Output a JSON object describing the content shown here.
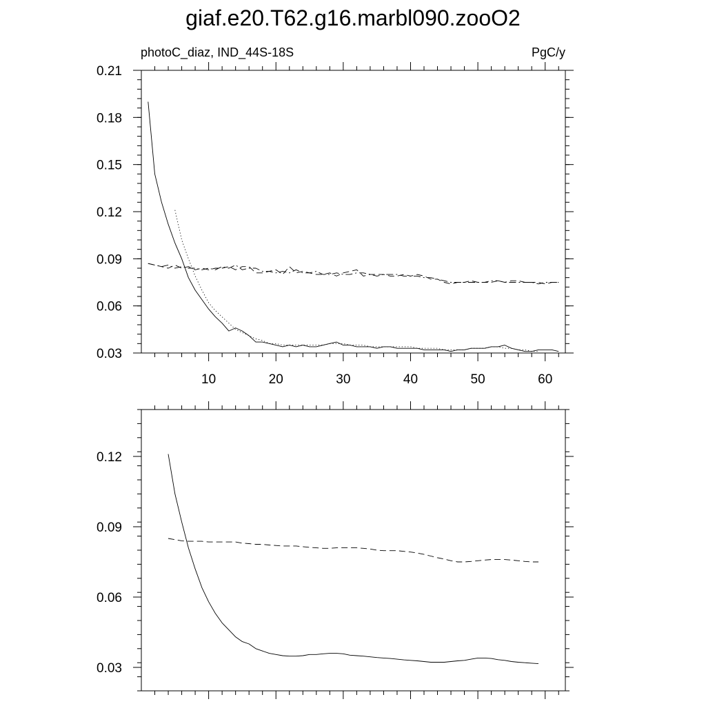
{
  "title": "giaf.e20.T62.g16.marbl090.zooO2",
  "chart_data": [
    {
      "type": "line",
      "left_label": "photoC_diaz, IND_44S-18S",
      "right_label": "PgC/y",
      "xlim": [
        0,
        63
      ],
      "ylim": [
        0.03,
        0.21
      ],
      "x_ticks": [
        10,
        20,
        30,
        40,
        50,
        60
      ],
      "x_tick_labels": [
        "10",
        "20",
        "30",
        "40",
        "50",
        "60"
      ],
      "y_ticks": [
        0.03,
        0.06,
        0.09,
        0.12,
        0.15,
        0.18,
        0.21
      ],
      "y_tick_labels": [
        "0.03",
        "0.06",
        "0.09",
        "0.12",
        "0.15",
        "0.18",
        "0.21"
      ],
      "grid": false,
      "series": [
        {
          "style": "solid",
          "x": [
            1,
            2,
            3,
            4,
            5,
            6,
            7,
            8,
            9,
            10,
            11,
            12,
            13,
            14,
            15,
            16,
            17,
            18,
            19,
            20,
            21,
            22,
            23,
            24,
            25,
            26,
            27,
            28,
            29,
            30,
            31,
            32,
            33,
            34,
            35,
            36,
            37,
            38,
            39,
            40,
            41,
            42,
            43,
            44,
            45,
            46,
            47,
            48,
            49,
            50,
            51,
            52,
            53,
            54,
            55,
            56,
            57,
            58,
            59,
            60,
            61,
            62
          ],
          "values": [
            0.19,
            0.144,
            0.126,
            0.112,
            0.1,
            0.09,
            0.078,
            0.07,
            0.064,
            0.058,
            0.053,
            0.049,
            0.044,
            0.046,
            0.044,
            0.041,
            0.037,
            0.037,
            0.036,
            0.035,
            0.034,
            0.035,
            0.034,
            0.035,
            0.034,
            0.034,
            0.035,
            0.036,
            0.037,
            0.035,
            0.035,
            0.034,
            0.034,
            0.034,
            0.033,
            0.034,
            0.034,
            0.033,
            0.033,
            0.033,
            0.033,
            0.032,
            0.032,
            0.032,
            0.032,
            0.031,
            0.032,
            0.032,
            0.033,
            0.033,
            0.033,
            0.034,
            0.034,
            0.035,
            0.033,
            0.032,
            0.031,
            0.031,
            0.032,
            0.032,
            0.032,
            0.031
          ]
        },
        {
          "style": "dotted",
          "x": [
            5,
            6,
            7,
            8,
            9,
            10,
            11,
            12,
            13,
            14,
            15,
            16,
            17,
            18,
            19,
            20,
            21,
            22,
            23,
            24,
            25,
            26,
            27,
            28,
            29,
            30,
            31,
            32,
            33,
            34,
            35,
            36,
            37,
            38,
            39,
            40,
            41,
            42,
            43,
            44,
            45,
            46,
            47,
            48,
            49,
            50,
            51,
            52,
            53,
            54,
            55,
            56,
            57,
            58,
            59
          ],
          "values": [
            0.121,
            0.102,
            0.09,
            0.079,
            0.07,
            0.062,
            0.057,
            0.053,
            0.049,
            0.045,
            0.043,
            0.041,
            0.039,
            0.038,
            0.036,
            0.036,
            0.035,
            0.035,
            0.035,
            0.035,
            0.035,
            0.035,
            0.035,
            0.036,
            0.036,
            0.036,
            0.035,
            0.035,
            0.035,
            0.034,
            0.034,
            0.034,
            0.034,
            0.034,
            0.034,
            0.034,
            0.033,
            0.033,
            0.033,
            0.033,
            0.032,
            0.032,
            0.032,
            0.032,
            0.033,
            0.033,
            0.033,
            0.034,
            0.034,
            0.033,
            0.033,
            0.032,
            0.032,
            0.031,
            0.031
          ]
        },
        {
          "style": "dashed",
          "x": [
            1,
            2,
            3,
            4,
            5,
            6,
            7,
            8,
            9,
            10,
            11,
            12,
            13,
            14,
            15,
            16,
            17,
            18,
            19,
            20,
            21,
            22,
            23,
            24,
            25,
            26,
            27,
            28,
            29,
            30,
            31,
            32,
            33,
            34,
            35,
            36,
            37,
            38,
            39,
            40,
            41,
            42,
            43,
            44,
            45,
            46,
            47,
            48,
            49,
            50,
            51,
            52,
            53,
            54,
            55,
            56,
            57,
            58,
            59,
            60,
            61,
            62
          ],
          "values": [
            0.087,
            0.086,
            0.085,
            0.084,
            0.086,
            0.084,
            0.085,
            0.083,
            0.084,
            0.083,
            0.084,
            0.084,
            0.085,
            0.083,
            0.085,
            0.085,
            0.081,
            0.081,
            0.082,
            0.083,
            0.08,
            0.085,
            0.081,
            0.082,
            0.081,
            0.08,
            0.08,
            0.081,
            0.079,
            0.081,
            0.082,
            0.083,
            0.079,
            0.08,
            0.08,
            0.08,
            0.079,
            0.079,
            0.08,
            0.079,
            0.08,
            0.079,
            0.077,
            0.077,
            0.075,
            0.074,
            0.075,
            0.075,
            0.076,
            0.075,
            0.075,
            0.075,
            0.076,
            0.075,
            0.076,
            0.076,
            0.075,
            0.075,
            0.075,
            0.074,
            0.075,
            0.075
          ]
        },
        {
          "style": "dashdot",
          "x": [
            1,
            2,
            3,
            4,
            5,
            6,
            7,
            8,
            9,
            10,
            11,
            12,
            13,
            14,
            15,
            16,
            17,
            18,
            19,
            20,
            21,
            22,
            23,
            24,
            25,
            26,
            27,
            28,
            29,
            30,
            31,
            32,
            33,
            34,
            35,
            36,
            37,
            38,
            39,
            40,
            41,
            42,
            43,
            44,
            45,
            46,
            47,
            48,
            49,
            50,
            51,
            52,
            53,
            54,
            55,
            56,
            57,
            58,
            59,
            60,
            61,
            62
          ],
          "values": [
            0.087,
            0.086,
            0.085,
            0.086,
            0.084,
            0.085,
            0.084,
            0.084,
            0.083,
            0.084,
            0.083,
            0.085,
            0.084,
            0.086,
            0.083,
            0.084,
            0.084,
            0.082,
            0.082,
            0.081,
            0.082,
            0.081,
            0.083,
            0.081,
            0.081,
            0.082,
            0.08,
            0.08,
            0.081,
            0.08,
            0.08,
            0.081,
            0.081,
            0.08,
            0.079,
            0.08,
            0.08,
            0.08,
            0.079,
            0.079,
            0.079,
            0.078,
            0.078,
            0.077,
            0.076,
            0.075,
            0.075,
            0.075,
            0.075,
            0.075,
            0.075,
            0.076,
            0.076,
            0.075,
            0.075,
            0.075,
            0.075,
            0.075,
            0.074,
            0.075,
            0.075,
            0.075
          ]
        }
      ]
    },
    {
      "type": "line",
      "xlim": [
        0,
        63
      ],
      "ylim": [
        0.02,
        0.14
      ],
      "x_ticks": [
        10,
        20,
        30,
        40,
        50,
        60
      ],
      "y_ticks": [
        0.03,
        0.06,
        0.09,
        0.12
      ],
      "y_tick_labels": [
        "0.03",
        "0.06",
        "0.09",
        "0.12"
      ],
      "grid": false,
      "series": [
        {
          "style": "solid",
          "x": [
            4,
            5,
            6,
            7,
            8,
            9,
            10,
            11,
            12,
            13,
            14,
            15,
            16,
            17,
            18,
            19,
            20,
            21,
            22,
            23,
            24,
            25,
            26,
            27,
            28,
            29,
            30,
            31,
            32,
            33,
            34,
            35,
            36,
            37,
            38,
            39,
            40,
            41,
            42,
            43,
            44,
            45,
            46,
            47,
            48,
            49,
            50,
            51,
            52,
            53,
            54,
            55,
            56,
            57,
            58,
            59
          ],
          "values": [
            0.121,
            0.104,
            0.092,
            0.081,
            0.072,
            0.064,
            0.058,
            0.053,
            0.049,
            0.046,
            0.043,
            0.041,
            0.04,
            0.038,
            0.037,
            0.036,
            0.0355,
            0.035,
            0.0348,
            0.0348,
            0.035,
            0.0355,
            0.0355,
            0.0358,
            0.036,
            0.036,
            0.0358,
            0.0352,
            0.035,
            0.0348,
            0.0345,
            0.0342,
            0.034,
            0.0338,
            0.0335,
            0.0332,
            0.033,
            0.0328,
            0.0325,
            0.0322,
            0.0322,
            0.0322,
            0.0325,
            0.0328,
            0.033,
            0.0335,
            0.034,
            0.034,
            0.0338,
            0.0333,
            0.033,
            0.0325,
            0.0322,
            0.032,
            0.0318,
            0.0316
          ]
        },
        {
          "style": "dashed",
          "x": [
            4,
            5,
            6,
            7,
            8,
            9,
            10,
            11,
            12,
            13,
            14,
            15,
            16,
            17,
            18,
            19,
            20,
            21,
            22,
            23,
            24,
            25,
            26,
            27,
            28,
            29,
            30,
            31,
            32,
            33,
            34,
            35,
            36,
            37,
            38,
            39,
            40,
            41,
            42,
            43,
            44,
            45,
            46,
            47,
            48,
            49,
            50,
            51,
            52,
            53,
            54,
            55,
            56,
            57,
            58,
            59
          ],
          "values": [
            0.085,
            0.0845,
            0.084,
            0.0838,
            0.0838,
            0.0838,
            0.0835,
            0.0835,
            0.0835,
            0.0835,
            0.0835,
            0.083,
            0.0828,
            0.0825,
            0.0825,
            0.0822,
            0.082,
            0.0818,
            0.0818,
            0.0818,
            0.0815,
            0.0812,
            0.081,
            0.0808,
            0.0808,
            0.081,
            0.081,
            0.081,
            0.081,
            0.0808,
            0.0805,
            0.08,
            0.0798,
            0.0798,
            0.0798,
            0.0795,
            0.0792,
            0.0788,
            0.0782,
            0.0775,
            0.0768,
            0.0762,
            0.0755,
            0.075,
            0.075,
            0.0752,
            0.0755,
            0.0758,
            0.076,
            0.076,
            0.076,
            0.0758,
            0.0755,
            0.0752,
            0.075,
            0.075
          ]
        }
      ]
    }
  ]
}
